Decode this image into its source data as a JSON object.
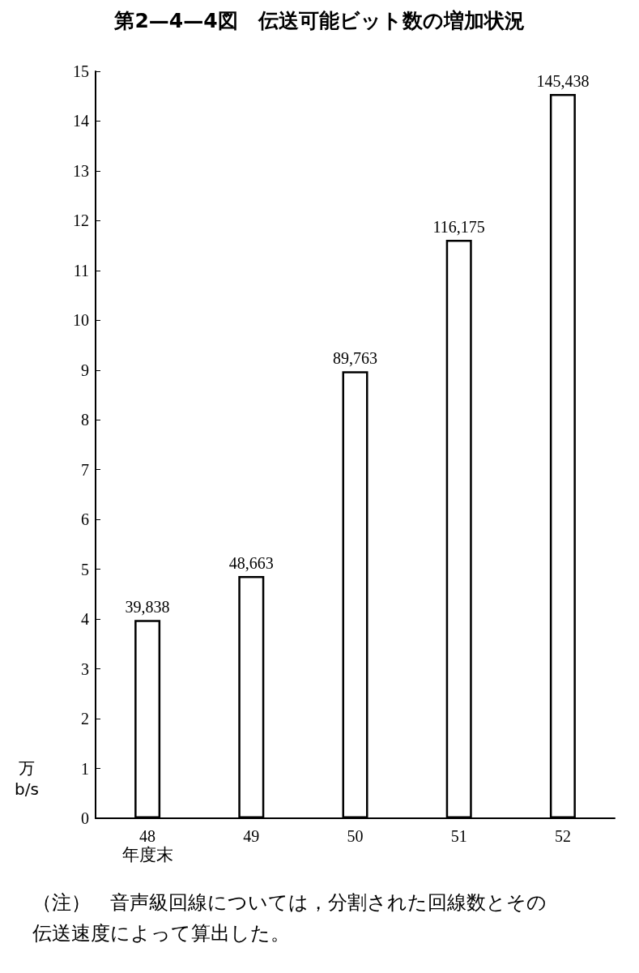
{
  "chart_data": {
    "type": "bar",
    "title": "第2—4—4図　伝送可能ビット数の増加状況",
    "categories": [
      "48",
      "49",
      "50",
      "51",
      "52"
    ],
    "values": [
      3.9838,
      4.8663,
      8.9763,
      11.6175,
      14.5438
    ],
    "color": "#ffffff",
    "ylim": [
      0,
      15
    ],
    "yticks": [
      0,
      1,
      2,
      3,
      4,
      5,
      6,
      7,
      8,
      9,
      10,
      11,
      12,
      13,
      14,
      15
    ],
    "ylabel": "万\nb/s",
    "xlabel": "年度末",
    "grid": false,
    "annotations": [
      {
        "text": "39,838",
        "x": "48",
        "y": 3.9838
      },
      {
        "text": "48,663",
        "x": "49",
        "y": 4.8663
      },
      {
        "text": "89,763",
        "x": "50",
        "y": 8.9763
      },
      {
        "text": "116,175",
        "x": "51",
        "y": 11.6175
      },
      {
        "text": "145,438",
        "x": "52",
        "y": 14.5438
      },
      "（注）　音声級回線については，分割された回線数とその伝送速度によって算出した。"
    ]
  }
}
